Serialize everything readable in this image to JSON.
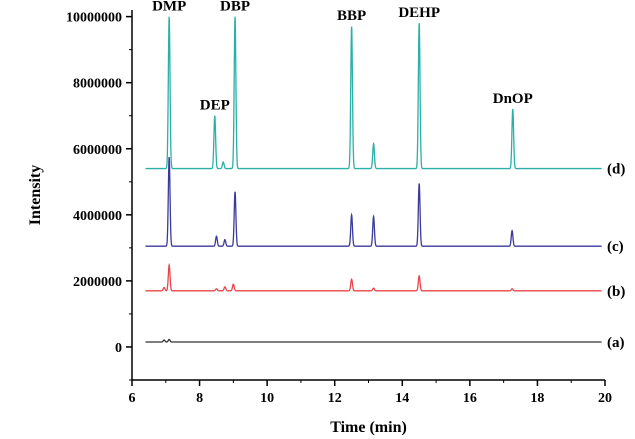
{
  "chart_data": {
    "type": "line",
    "title": "",
    "xlabel": "Time (min)",
    "ylabel": "Intensity",
    "xlim": [
      6,
      20
    ],
    "ylim": [
      -1000000,
      10200000
    ],
    "x_ticks": [
      "6",
      "8",
      "10",
      "12",
      "14",
      "16",
      "18",
      "20"
    ],
    "y_ticks": [
      "0",
      "2000000",
      "4000000",
      "6000000",
      "8000000",
      "10000000"
    ],
    "grid": false,
    "series": [
      {
        "name": "(a)",
        "color": "#333333",
        "baseline": 150000,
        "peaks": [
          [
            6.95,
            60000
          ],
          [
            7.1,
            80000
          ]
        ]
      },
      {
        "name": "(b)",
        "color": "#e8454a",
        "baseline": 1700000,
        "peaks": [
          [
            6.95,
            100000
          ],
          [
            7.1,
            780000
          ],
          [
            8.5,
            60000
          ],
          [
            8.75,
            120000
          ],
          [
            9.0,
            200000
          ],
          [
            12.5,
            350000
          ],
          [
            13.15,
            80000
          ],
          [
            14.5,
            450000
          ],
          [
            17.25,
            60000
          ]
        ]
      },
      {
        "name": "(c)",
        "color": "#3a3a9c",
        "baseline": 3050000,
        "peaks": [
          [
            7.1,
            2700000
          ],
          [
            8.5,
            300000
          ],
          [
            8.75,
            200000
          ],
          [
            9.05,
            1650000
          ],
          [
            12.5,
            950000
          ],
          [
            13.15,
            900000
          ],
          [
            14.5,
            1900000
          ],
          [
            17.25,
            470000
          ]
        ]
      },
      {
        "name": "(d)",
        "color": "#2ab0a6",
        "baseline": 5400000,
        "peaks": [
          [
            7.1,
            4600000
          ],
          [
            8.45,
            1600000
          ],
          [
            8.7,
            200000
          ],
          [
            9.05,
            4600000
          ],
          [
            12.5,
            4300000
          ],
          [
            13.15,
            750000
          ],
          [
            14.5,
            4400000
          ],
          [
            17.27,
            1800000
          ]
        ]
      }
    ],
    "annotations": [
      {
        "text": "DMP",
        "x": 7.1,
        "y": 10100000
      },
      {
        "text": "DEP",
        "x": 8.45,
        "y": 7100000
      },
      {
        "text": "DBP",
        "x": 9.05,
        "y": 10100000
      },
      {
        "text": "BBP",
        "x": 12.5,
        "y": 9800000
      },
      {
        "text": "DEHP",
        "x": 14.5,
        "y": 9900000
      },
      {
        "text": "DnOP",
        "x": 17.27,
        "y": 7300000
      }
    ]
  }
}
